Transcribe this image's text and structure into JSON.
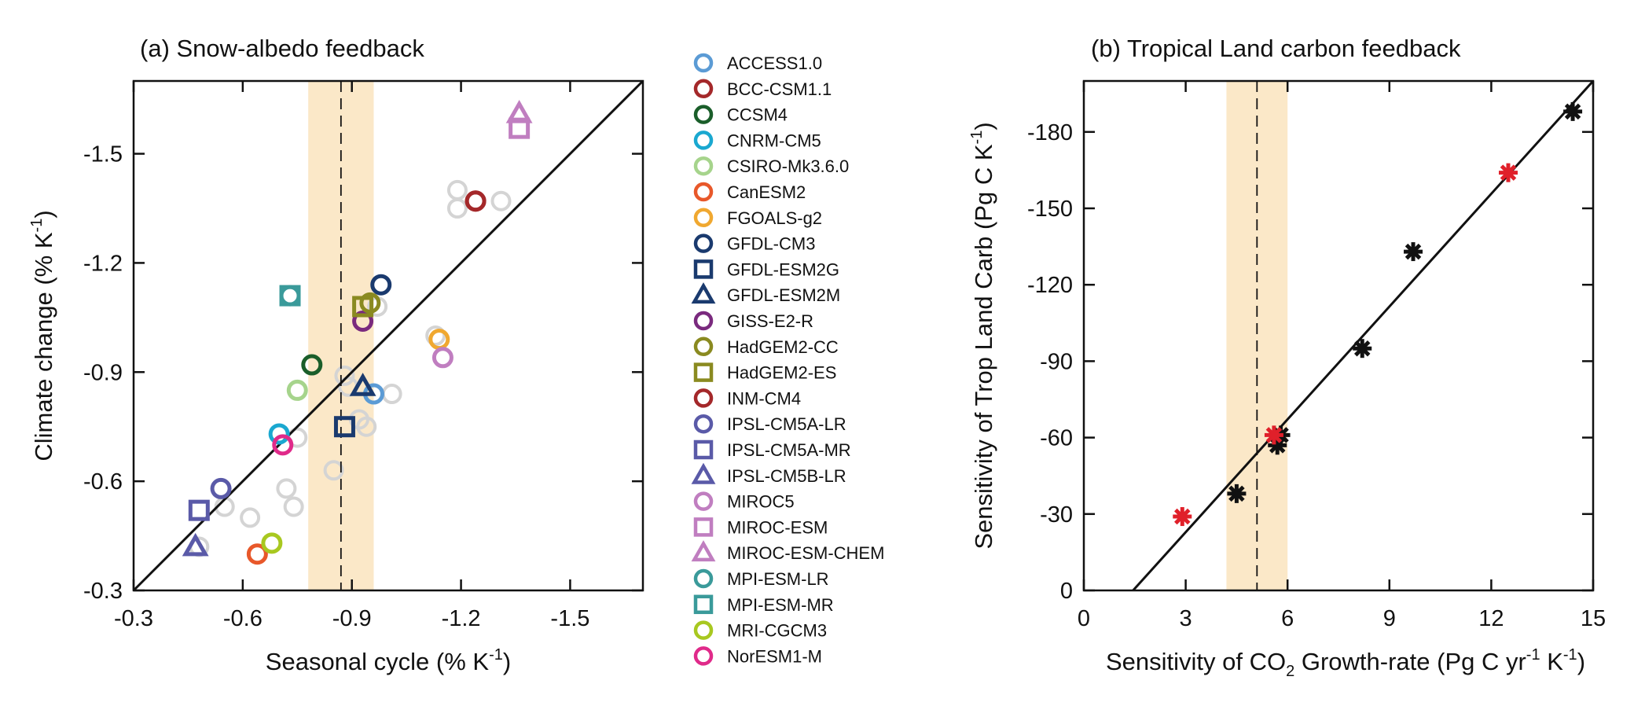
{
  "chart_data": [
    {
      "type": "scatter",
      "title": "(a) Snow-albedo feedback",
      "xlabel": "Seasonal cycle (% K",
      "xlabel_sup": "-1",
      "xlabel_end": ")",
      "ylabel": "Climate change (% K",
      "ylabel_sup": "-1",
      "ylabel_end": ")",
      "xlim": [
        -0.3,
        -1.7
      ],
      "ylim": [
        -0.3,
        -1.7
      ],
      "xticks": [
        -0.3,
        -0.6,
        -0.9,
        -1.2,
        -1.5
      ],
      "xtick_labels": [
        "-0.3",
        "-0.6",
        "-0.9",
        "-1.2",
        "-1.5"
      ],
      "yticks": [
        -0.3,
        -0.6,
        -0.9,
        -1.2,
        -1.5
      ],
      "ytick_labels": [
        "-0.3",
        "-0.6",
        "-0.9",
        "-1.2",
        "-1.5"
      ],
      "grid": false,
      "one_to_one_line": [
        [
          -0.3,
          -0.3
        ],
        [
          -1.7,
          -1.7
        ]
      ],
      "observed_estimate": {
        "x": -0.87,
        "range": [
          -0.78,
          -0.96
        ],
        "band_color": "#fbe8c8"
      },
      "models": [
        {
          "name": "ACCESS1.0",
          "marker": "circle",
          "color": "#5b9bd5",
          "x": -0.96,
          "y": -0.84
        },
        {
          "name": "BCC-CSM1.1",
          "marker": "circle",
          "color": "#a4282a",
          "x": -1.24,
          "y": -1.37
        },
        {
          "name": "CCSM4",
          "marker": "circle",
          "color": "#1a5e2a",
          "x": -0.79,
          "y": -0.92
        },
        {
          "name": "CNRM-CM5",
          "marker": "circle",
          "color": "#1aa8d0",
          "x": -0.7,
          "y": -0.73
        },
        {
          "name": "CSIRO-Mk3.6.0",
          "marker": "circle",
          "color": "#a6d48c",
          "x": -0.75,
          "y": -0.85
        },
        {
          "name": "CanESM2",
          "marker": "circle",
          "color": "#e8582a",
          "x": -0.64,
          "y": -0.4
        },
        {
          "name": "FGOALS-g2",
          "marker": "circle",
          "color": "#f0a830",
          "x": -1.14,
          "y": -0.99
        },
        {
          "name": "GFDL-CM3",
          "marker": "circle",
          "color": "#1a3a6e",
          "x": -0.98,
          "y": -1.14
        },
        {
          "name": "GFDL-ESM2G",
          "marker": "square",
          "color": "#1a3a6e",
          "x": -0.88,
          "y": -0.75
        },
        {
          "name": "GFDL-ESM2M",
          "marker": "triangle",
          "color": "#1a3a6e",
          "x": -0.93,
          "y": -0.86
        },
        {
          "name": "GISS-E2-R",
          "marker": "circle",
          "color": "#7a2a7e",
          "x": -0.93,
          "y": -1.04
        },
        {
          "name": "HadGEM2-CC",
          "marker": "circle",
          "color": "#8a8a20",
          "x": -0.95,
          "y": -1.09
        },
        {
          "name": "HadGEM2-ES",
          "marker": "square",
          "color": "#8a8a20",
          "x": -0.93,
          "y": -1.08
        },
        {
          "name": "INM-CM4",
          "marker": "circle",
          "color": "#a4282a",
          "x": -1.24,
          "y": -1.37
        },
        {
          "name": "IPSL-CM5A-LR",
          "marker": "circle",
          "color": "#5a5aa8",
          "x": -0.54,
          "y": -0.58
        },
        {
          "name": "IPSL-CM5A-MR",
          "marker": "square",
          "color": "#5a5aa8",
          "x": -0.48,
          "y": -0.52
        },
        {
          "name": "IPSL-CM5B-LR",
          "marker": "triangle",
          "color": "#5a5aa8",
          "x": -0.47,
          "y": -0.42
        },
        {
          "name": "MIROC5",
          "marker": "circle",
          "color": "#c07ec0",
          "x": -1.15,
          "y": -0.94
        },
        {
          "name": "MIROC-ESM",
          "marker": "square",
          "color": "#c07ec0",
          "x": -1.36,
          "y": -1.57
        },
        {
          "name": "MIROC-ESM-CHEM",
          "marker": "triangle",
          "color": "#c07ec0",
          "x": -1.36,
          "y": -1.61
        },
        {
          "name": "MPI-ESM-LR",
          "marker": "circle",
          "color": "#3a9a9a",
          "x": -0.73,
          "y": -1.11
        },
        {
          "name": "MPI-ESM-MR",
          "marker": "square",
          "color": "#3a9a9a",
          "x": -0.73,
          "y": -1.11
        },
        {
          "name": "MRI-CGCM3",
          "marker": "circle",
          "color": "#a8c820",
          "x": -0.68,
          "y": -0.43
        },
        {
          "name": "NorESM1-M",
          "marker": "circle",
          "color": "#e02a8a",
          "x": -0.71,
          "y": -0.7
        }
      ],
      "other_points_color": "#d4d4d4",
      "other_points": [
        {
          "x": -0.48,
          "y": -0.42
        },
        {
          "x": -0.55,
          "y": -0.53
        },
        {
          "x": -0.62,
          "y": -0.5
        },
        {
          "x": -0.72,
          "y": -0.58
        },
        {
          "x": -0.74,
          "y": -0.53
        },
        {
          "x": -0.75,
          "y": -0.72
        },
        {
          "x": -0.85,
          "y": -0.63
        },
        {
          "x": -0.88,
          "y": -0.89
        },
        {
          "x": -0.89,
          "y": -0.86
        },
        {
          "x": -0.92,
          "y": -0.77
        },
        {
          "x": -0.94,
          "y": -0.75
        },
        {
          "x": -1.01,
          "y": -0.84
        },
        {
          "x": -0.97,
          "y": -1.08
        },
        {
          "x": -1.13,
          "y": -1.0
        },
        {
          "x": -1.19,
          "y": -1.35
        },
        {
          "x": -1.19,
          "y": -1.4
        },
        {
          "x": -1.31,
          "y": -1.37
        }
      ]
    },
    {
      "type": "scatter",
      "title": "(b) Tropical Land carbon feedback",
      "xlabel_pre": "Sensitivity of CO",
      "xlabel_sub": "2",
      "xlabel_mid": " Growth-rate (Pg C yr",
      "xlabel_sup1": "-1",
      "xlabel_mid2": " K",
      "xlabel_sup2": "-1",
      "xlabel_end": ")",
      "ylabel": "Sensitivity of Trop Land Carb (Pg C K",
      "ylabel_sup": "-1",
      "ylabel_end": ")",
      "xlim": [
        0,
        15
      ],
      "ylim": [
        0,
        -200
      ],
      "xticks": [
        0,
        3,
        6,
        9,
        12,
        15
      ],
      "xtick_labels": [
        "0",
        "3",
        "6",
        "9",
        "12",
        "15"
      ],
      "yticks": [
        0,
        -30,
        -60,
        -90,
        -120,
        -150,
        -180
      ],
      "ytick_labels": [
        "0",
        "-30",
        "-60",
        "-90",
        "-120",
        "-150",
        "-180"
      ],
      "grid": false,
      "regression_line": [
        [
          1.45,
          0
        ],
        [
          15,
          -200
        ]
      ],
      "observed_estimate": {
        "x": 5.1,
        "range": [
          4.2,
          6.0
        ],
        "band_color": "#fbe8c8"
      },
      "series": [
        {
          "color": "#111111",
          "marker": "asterisk",
          "points": [
            {
              "x": 4.5,
              "y": -38
            },
            {
              "x": 5.7,
              "y": -57
            },
            {
              "x": 5.8,
              "y": -61
            },
            {
              "x": 8.2,
              "y": -95
            },
            {
              "x": 9.7,
              "y": -133
            },
            {
              "x": 14.4,
              "y": -188
            }
          ]
        },
        {
          "color": "#e0202a",
          "marker": "asterisk",
          "points": [
            {
              "x": 2.9,
              "y": -29
            },
            {
              "x": 5.6,
              "y": -61
            },
            {
              "x": 12.5,
              "y": -164
            }
          ]
        }
      ]
    }
  ]
}
